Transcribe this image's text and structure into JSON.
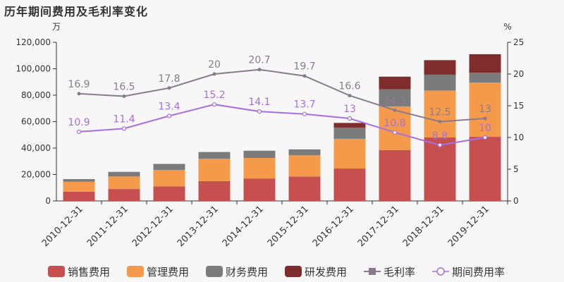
{
  "title": "历年期间费用及毛利率变化",
  "chart_data": {
    "type": "bar",
    "title": "历年期间费用及毛利率变化",
    "categories": [
      "2010-12-31",
      "2011-12-31",
      "2012-12-31",
      "2013-12-31",
      "2014-12-31",
      "2015-12-31",
      "2016-12-31",
      "2017-12-31",
      "2018-12-31",
      "2019-12-31"
    ],
    "stacked": true,
    "left_axis": {
      "unit": "万",
      "ylim": [
        0,
        120000
      ],
      "ticks": [
        "0",
        "20,000",
        "40,000",
        "60,000",
        "80,000",
        "100,000",
        "120,000"
      ]
    },
    "right_axis": {
      "unit": "%",
      "ylim": [
        0,
        25
      ],
      "ticks": [
        "0",
        "5",
        "10",
        "15",
        "20",
        "25"
      ]
    },
    "series": [
      {
        "name": "销售费用",
        "axis": "left",
        "color": "#c6504f",
        "values": [
          7000,
          9000,
          11000,
          15000,
          17000,
          18500,
          24500,
          38500,
          48000,
          48500
        ]
      },
      {
        "name": "管理费用",
        "axis": "left",
        "color": "#f59a4a",
        "values": [
          7500,
          9500,
          12500,
          17000,
          15500,
          16000,
          22500,
          33000,
          35500,
          41000
        ]
      },
      {
        "name": "财务费用",
        "axis": "left",
        "color": "#7b7b7b",
        "values": [
          2000,
          3500,
          4500,
          5000,
          5500,
          4500,
          8500,
          13000,
          12000,
          7500
        ]
      },
      {
        "name": "研发费用",
        "axis": "left",
        "color": "#7f2c2c",
        "values": [
          0,
          0,
          0,
          0,
          0,
          0,
          3500,
          9500,
          11000,
          14000
        ]
      }
    ],
    "lines": [
      {
        "name": "毛利率",
        "axis": "right",
        "color": "#8a7a8e",
        "values": [
          16.9,
          16.5,
          17.8,
          20,
          20.7,
          19.7,
          16.6,
          14.3,
          12.5,
          13
        ],
        "labels": [
          "16.9",
          "16.5",
          "17.8",
          "20",
          "20.7",
          "19.7",
          "16.6",
          "14.3",
          "12.5",
          "13"
        ]
      },
      {
        "name": "期间费用率",
        "axis": "right",
        "color": "#a76ee0",
        "values": [
          10.9,
          11.4,
          13.4,
          15.2,
          14.1,
          13.7,
          13,
          10.8,
          8.8,
          10
        ],
        "labels": [
          "10.9",
          "11.4",
          "13.4",
          "15.2",
          "14.1",
          "13.7",
          "13",
          "10.8",
          "8.8",
          "10"
        ]
      }
    ],
    "grid": false,
    "legend": "bottom"
  }
}
